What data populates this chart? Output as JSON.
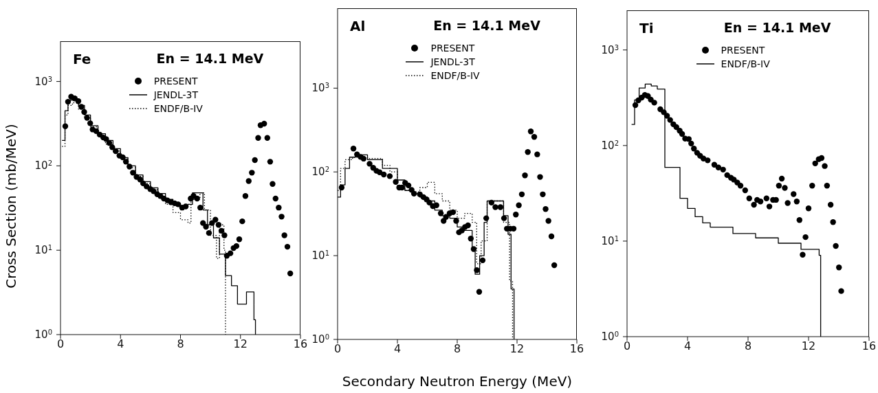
{
  "chart_data": [
    {
      "type": "scatter",
      "ylabel": "Cross Section (mb/MeV)",
      "annotations": [
        "Fe",
        "En = 14.1 MeV"
      ],
      "log": "y",
      "legend": "top",
      "xlim": [
        0,
        16
      ],
      "xticks": [
        0,
        4,
        8,
        12,
        16
      ],
      "ylim": [
        1,
        3000
      ],
      "yticks": [
        {
          "value": 1,
          "label": "10$^{0}$"
        },
        {
          "value": 10,
          "label": "10$^{1}$"
        },
        {
          "value": 100,
          "label": "10$^{2}$"
        },
        {
          "value": 1000,
          "label": "10$^{3}$"
        }
      ],
      "series": [
        {
          "name": "PRESENT",
          "marker": "circle",
          "color": "#000000",
          "x": [
            0.32,
            0.5,
            0.71,
            0.95,
            1.19,
            1.39,
            1.58,
            1.77,
            1.98,
            2.14,
            2.38,
            2.61,
            2.85,
            3.04,
            3.25,
            3.45,
            3.68,
            3.93,
            4.15,
            4.36,
            4.6,
            4.83,
            5.07,
            5.31,
            5.51,
            5.74,
            5.99,
            6.21,
            6.45,
            6.66,
            6.89,
            7.13,
            7.37,
            7.61,
            7.84,
            8.11,
            8.35,
            8.68,
            8.87,
            9.11,
            9.32,
            9.5,
            9.7,
            9.9,
            10.1,
            10.33,
            10.54,
            10.73,
            10.93,
            11.09,
            11.33,
            11.54,
            11.73,
            11.92,
            12.12,
            12.33,
            12.55,
            12.76,
            12.96,
            13.18,
            13.34,
            13.58,
            13.79,
            13.98,
            14.14,
            14.34,
            14.55,
            14.74,
            14.93,
            15.13,
            15.32
          ],
          "values": [
            295,
            575,
            660,
            630,
            585,
            500,
            435,
            370,
            320,
            270,
            258,
            235,
            217,
            208,
            187,
            166,
            149,
            132,
            126,
            112,
            98,
            83,
            74,
            69,
            62,
            57,
            53,
            50,
            46,
            44,
            41,
            39,
            37,
            36,
            35,
            32,
            33,
            41,
            44,
            41,
            32,
            21,
            19,
            16,
            21,
            23,
            20,
            17,
            15,
            8.6,
            9.2,
            10.6,
            11.2,
            13.5,
            22,
            44,
            66,
            83,
            117,
            214,
            303,
            316,
            214,
            112,
            61,
            41,
            32,
            25,
            15,
            11,
            5.3
          ]
        },
        {
          "name": "JENDL-3T",
          "type": "step",
          "marker": "none",
          "line_style": "solid",
          "color": "#000000",
          "x": [
            0.1,
            0.3,
            0.5,
            0.8,
            1.2,
            1.6,
            2.0,
            2.5,
            3.0,
            3.5,
            4,
            4.5,
            5,
            5.5,
            6,
            6.5,
            7,
            7.5,
            8,
            8.5,
            8.8,
            9.2,
            9.5,
            9.8,
            10.2,
            10.6,
            11,
            11.4,
            11.8,
            12.2,
            12.4,
            12.7,
            12.9,
            13.0
          ],
          "values": [
            200,
            450,
            600,
            620,
            520,
            400,
            300,
            240,
            200,
            160,
            125,
            100,
            78,
            65,
            55,
            47,
            40,
            36,
            33,
            35,
            48,
            48,
            30,
            20,
            14,
            9,
            5,
            3.8,
            2.3,
            2.3,
            3.2,
            3.2,
            1.5,
            1
          ]
        },
        {
          "name": "ENDF/B-IV",
          "type": "step",
          "marker": "none",
          "line_style": "dotted",
          "color": "#000000",
          "x": [
            0.1,
            0.3,
            0.5,
            0.8,
            1.2,
            1.6,
            2,
            2.5,
            3,
            3.5,
            4,
            4.5,
            5,
            5.5,
            6,
            6.5,
            7,
            7.5,
            8,
            8.5,
            8.7,
            9.3,
            9.6,
            10,
            10.4,
            10.6,
            10.9,
            11.0
          ],
          "values": [
            170,
            400,
            520,
            560,
            470,
            370,
            290,
            220,
            180,
            150,
            120,
            95,
            75,
            62,
            52,
            43,
            35,
            28,
            23,
            21,
            40,
            48,
            30,
            15,
            8,
            20,
            10,
            1
          ]
        }
      ]
    },
    {
      "type": "scatter",
      "xlabel": "Secondary Neutron Energy (MeV)",
      "annotations": [
        "Al",
        "En = 14.1 MeV"
      ],
      "log": "y",
      "legend": "top",
      "xlim": [
        0,
        16
      ],
      "xticks": [
        0,
        4,
        8,
        12,
        16
      ],
      "ylim": [
        1,
        9000
      ],
      "yticks": [
        {
          "value": 1,
          "label": "10$^{0}$"
        },
        {
          "value": 10,
          "label": "10$^{1}$"
        },
        {
          "value": 100,
          "label": "10$^{2}$"
        },
        {
          "value": 1000,
          "label": "10$^{3}$"
        }
      ],
      "series": [
        {
          "name": "PRESENT",
          "marker": "circle",
          "color": "#000000",
          "x": [
            0.27,
            1.06,
            1.3,
            1.54,
            1.74,
            2.14,
            2.38,
            2.6,
            2.81,
            3.09,
            3.49,
            3.89,
            4.12,
            4.31,
            4.52,
            4.74,
            4.95,
            5.11,
            5.5,
            5.74,
            5.95,
            6.14,
            6.37,
            6.61,
            6.9,
            7.09,
            7.25,
            7.49,
            7.72,
            7.93,
            8.12,
            8.31,
            8.52,
            8.72,
            8.91,
            9.1,
            9.31,
            9.47,
            9.7,
            9.94,
            10.29,
            10.55,
            10.89,
            11.13,
            11.32,
            11.54,
            11.77,
            11.92,
            12.12,
            12.32,
            12.53,
            12.72,
            12.92,
            13.15,
            13.35,
            13.54,
            13.72,
            13.91,
            14.1,
            14.3,
            14.49
          ],
          "values": [
            65,
            190,
            162,
            151,
            144,
            125,
            112,
            103,
            99,
            93,
            89,
            76,
            65,
            65,
            74,
            69,
            61,
            55,
            54,
            50,
            47,
            43,
            39,
            40,
            32,
            26,
            29,
            32,
            33,
            26,
            19,
            20,
            22,
            23,
            16,
            12,
            6.7,
            3.7,
            8.8,
            28,
            43,
            38,
            38,
            28,
            21,
            21,
            21,
            31,
            40,
            54,
            91,
            173,
            305,
            262,
            162,
            87,
            54,
            36,
            26,
            17,
            7.7
          ]
        },
        {
          "name": "JENDL-3T",
          "type": "step",
          "marker": "none",
          "line_style": "solid",
          "color": "#000000",
          "x": [
            0,
            0.2,
            0.5,
            0.8,
            1.2,
            2,
            3,
            4,
            4.5,
            5,
            5.5,
            6,
            6.5,
            7,
            7.5,
            8,
            8.5,
            9,
            9.2,
            9.5,
            9.8,
            10,
            11,
            11.1,
            11.4,
            11.6,
            11.8
          ],
          "values": [
            50,
            70,
            110,
            150,
            160,
            140,
            110,
            80,
            60,
            55,
            50,
            45,
            35,
            30,
            28,
            22,
            20,
            12,
            6,
            10,
            25,
            45,
            45,
            30,
            18,
            4,
            1
          ]
        },
        {
          "name": "ENDF/B-IV",
          "type": "step",
          "marker": "none",
          "line_style": "dotted",
          "color": "#000000",
          "x": [
            0,
            0.2,
            0.5,
            1,
            2,
            3,
            3.5,
            4,
            4.5,
            5,
            5.5,
            6,
            6.5,
            7,
            7.5,
            8,
            8.5,
            9,
            9.3,
            9.6,
            10,
            11,
            11.1,
            11.5,
            11.7
          ],
          "values": [
            60,
            110,
            140,
            150,
            145,
            120,
            100,
            65,
            60,
            58,
            65,
            75,
            55,
            45,
            35,
            28,
            32,
            25,
            8,
            15,
            45,
            45,
            25,
            5,
            1
          ]
        }
      ]
    },
    {
      "type": "scatter",
      "annotations": [
        "Ti",
        "En = 14.1 MeV"
      ],
      "log": "y",
      "legend": "top",
      "xlim": [
        0,
        16
      ],
      "xticks": [
        0,
        4,
        8,
        12,
        16
      ],
      "ylim": [
        1,
        2600
      ],
      "yticks": [
        {
          "value": 1,
          "label": "10$^{0}$"
        },
        {
          "value": 10,
          "label": "10$^{1}$"
        },
        {
          "value": 100,
          "label": "10$^{2}$"
        },
        {
          "value": 1000,
          "label": "10$^{3}$"
        }
      ],
      "series": [
        {
          "name": "PRESENT",
          "marker": "circle",
          "color": "#000000",
          "x": [
            0.55,
            0.75,
            0.97,
            1.18,
            1.38,
            1.57,
            1.8,
            2.2,
            2.43,
            2.64,
            2.85,
            3.06,
            3.26,
            3.48,
            3.64,
            3.84,
            4.08,
            4.24,
            4.42,
            4.63,
            4.83,
            5.05,
            5.33,
            5.77,
            6.04,
            6.35,
            6.62,
            6.87,
            7.06,
            7.29,
            7.5,
            7.81,
            8.08,
            8.39,
            8.6,
            8.82,
            9.22,
            9.41,
            9.65,
            9.85,
            10.04,
            10.23,
            10.43,
            10.62,
            11.01,
            11.22,
            11.4,
            11.61,
            11.8,
            12.0,
            12.24,
            12.44,
            12.67,
            12.86,
            13.07,
            13.22,
            13.46,
            13.62,
            13.8,
            14.01,
            14.16
          ],
          "values": [
            265,
            297,
            318,
            338,
            330,
            302,
            281,
            240,
            223,
            205,
            185,
            167,
            156,
            143,
            132,
            118,
            117,
            105,
            93,
            84,
            78,
            73,
            70,
            63,
            59,
            56,
            49,
            46,
            44,
            41,
            38,
            34,
            28,
            24,
            27,
            26,
            28,
            23,
            27,
            27,
            38,
            45,
            36,
            25,
            31,
            26,
            16.6,
            7.2,
            11,
            22,
            38,
            65,
            72,
            74,
            61,
            38,
            24,
            15.8,
            8.9,
            5.3,
            3.0
          ]
        },
        {
          "name": "ENDF/B-IV",
          "type": "step",
          "marker": "none",
          "line_style": "solid",
          "color": "#000000",
          "x": [
            0.3,
            0.5,
            0.8,
            1.2,
            1.6,
            2.0,
            2.5,
            3.5,
            4.0,
            4.5,
            5.0,
            5.5,
            7,
            8.5,
            10,
            11.5,
            12.7,
            12.8
          ],
          "values": [
            166,
            300,
            400,
            440,
            420,
            390,
            59,
            28,
            22,
            18,
            15.5,
            14,
            12,
            10.8,
            9.5,
            8.2,
            7.1,
            1
          ]
        }
      ]
    }
  ]
}
